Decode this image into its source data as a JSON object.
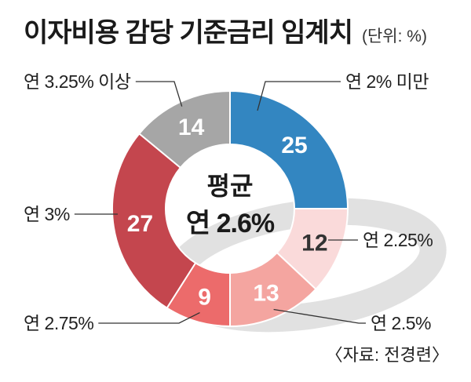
{
  "header": {
    "title": "이자비용 감당 기준금리 임계치",
    "unit": "(단위: %)"
  },
  "source": "〈자료: 전경련〉",
  "chart_data": {
    "type": "pie",
    "donut": true,
    "categories": [
      "연 2% 미만",
      "연 2.25%",
      "연 2.5%",
      "연 2.75%",
      "연 3%",
      "연 3.25% 이상"
    ],
    "values": [
      25,
      12,
      13,
      9,
      27,
      14
    ],
    "colors": [
      "#3386c1",
      "#fadada",
      "#f4a5a0",
      "#ec6b6b",
      "#c4464e",
      "#a6a6a6"
    ],
    "center_label": "평균",
    "center_value": "연 2.6%"
  }
}
